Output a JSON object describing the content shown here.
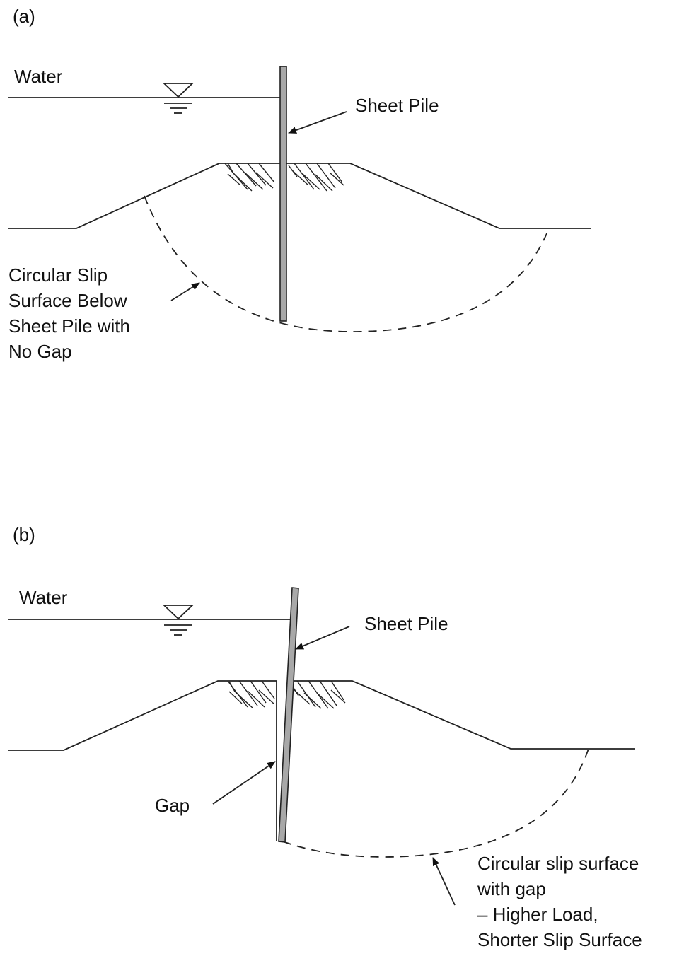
{
  "panel_a": {
    "tag": "(a)",
    "water_label": "Water",
    "pile_label": "Sheet Pile",
    "slip_label_lines": [
      "Circular Slip",
      "Surface Below",
      "Sheet Pile with",
      "No Gap"
    ]
  },
  "panel_b": {
    "tag": "(b)",
    "water_label": "Water",
    "pile_label": "Sheet Pile",
    "gap_label": "Gap",
    "slip_label_lines": [
      "Circular slip surface",
      "with gap",
      "– Higher Load,",
      "Shorter Slip Surface"
    ]
  },
  "icons": {
    "water_level": "water-level-triangle-icon",
    "arrow": "arrowhead-icon"
  },
  "colors": {
    "line": "#222222",
    "pile_fill": "#a8a8a8"
  }
}
